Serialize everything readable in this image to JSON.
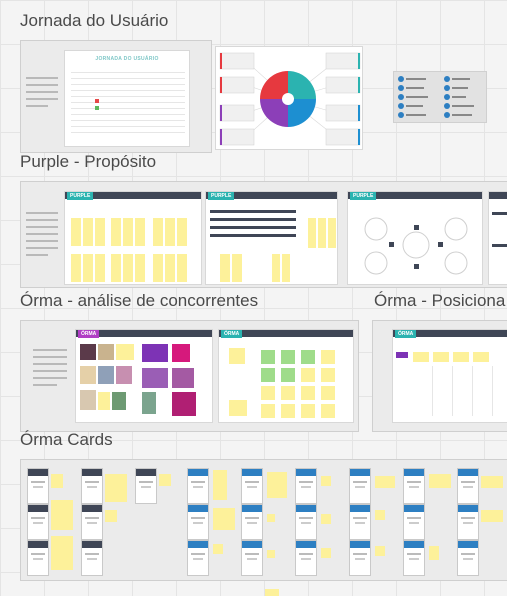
{
  "frames": {
    "jornada": {
      "title": "Jornada do Usuário",
      "board_heading": "JORNADA DO USUÁRIO"
    },
    "purple": {
      "title": "Purple - Propósito",
      "tag": "PURPLE"
    },
    "orma_concorrentes": {
      "title": "Órma - análise de concorrentes",
      "tag": "ÓRMA"
    },
    "orma_posicionamento": {
      "title": "Órma - Posiciona",
      "tag": "ÓRMA"
    },
    "orma_cards": {
      "title": "Órma Cards"
    }
  },
  "colors": {
    "canvas": "#f4f4f4",
    "sticky": "#fdf19a",
    "pink": "#d6197c",
    "teal": "#2bb3b0",
    "purple": "#b13ec4",
    "card_blue": "#2d7fc2",
    "card_dark": "#3f4656"
  }
}
